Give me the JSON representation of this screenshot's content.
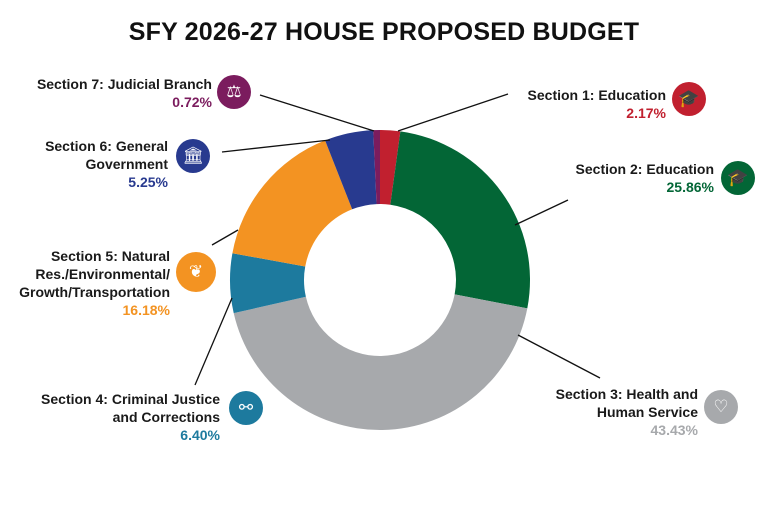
{
  "chart_data": {
    "type": "pie",
    "variant": "donut",
    "title": "SFY 2026-27 HOUSE PROPOSED BUDGET",
    "slices": [
      {
        "label": "Section 1: Education",
        "value": 2.17,
        "pct_label": "2.17%",
        "color": "#c1202f",
        "icon": "graduation-cap-icon"
      },
      {
        "label": "Section 2: Education",
        "value": 25.86,
        "pct_label": "25.86%",
        "color": "#036636",
        "icon": "graduation-cap-icon"
      },
      {
        "label": "Section 3: Health and Human Service",
        "value": 43.43,
        "pct_label": "43.43%",
        "color": "#a7a9ac",
        "icon": "heart-plus-icon"
      },
      {
        "label": "Section 4: Criminal Justice and Corrections",
        "value": 6.4,
        "pct_label": "6.40%",
        "color": "#1d7a9e",
        "icon": "handcuffs-icon"
      },
      {
        "label": "Section 5: Natural Res./Environmental/ Growth/Transportation",
        "value": 16.18,
        "pct_label": "16.18%",
        "color": "#f39322",
        "icon": "leaf-icon"
      },
      {
        "label": "Section 6: General Government",
        "value": 5.25,
        "pct_label": "5.25%",
        "color": "#283a8f",
        "icon": "government-building-icon"
      },
      {
        "label": "Section 7: Judicial Branch",
        "value": 0.72,
        "pct_label": "0.72%",
        "color": "#7b1c5e",
        "icon": "scales-icon"
      }
    ]
  }
}
